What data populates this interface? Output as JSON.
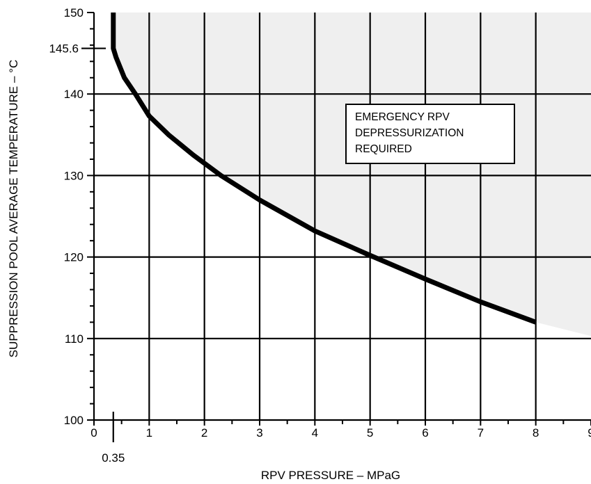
{
  "chart_data": {
    "type": "line",
    "xlabel": "RPV PRESSURE – MPaG",
    "ylabel": "SUPPRESSION POOL AVERAGE TEMPERATURE – °C",
    "xlim": [
      0,
      9
    ],
    "ylim": [
      100,
      150
    ],
    "x_ticks": [
      "0",
      "1",
      "2",
      "3",
      "4",
      "5",
      "6",
      "7",
      "8",
      "9"
    ],
    "y_ticks": [
      "100",
      "110",
      "120",
      "130",
      "140",
      "150"
    ],
    "grid": true,
    "series": [
      {
        "values": [
          {
            "x": 0.35,
            "y": 150
          },
          {
            "x": 0.35,
            "y": 145.6
          },
          {
            "x": 0.4,
            "y": 144.5
          },
          {
            "x": 0.55,
            "y": 142
          },
          {
            "x": 0.75,
            "y": 140
          },
          {
            "x": 1.0,
            "y": 137.3
          },
          {
            "x": 1.35,
            "y": 135
          },
          {
            "x": 1.8,
            "y": 132.5
          },
          {
            "x": 2.3,
            "y": 130
          },
          {
            "x": 3.0,
            "y": 127
          },
          {
            "x": 4.0,
            "y": 123.2
          },
          {
            "x": 5.0,
            "y": 120.2
          },
          {
            "x": 6.0,
            "y": 117.3
          },
          {
            "x": 7.0,
            "y": 114.5
          },
          {
            "x": 8.0,
            "y": 112
          }
        ]
      }
    ],
    "shaded_region": {
      "label_lines": [
        "EMERGENCY RPV",
        "DEPRESSURIZATION",
        "REQUIRED"
      ],
      "edge_end": {
        "x": 9.0,
        "y": 110.3
      },
      "color": "#efefef"
    },
    "annotations": [
      {
        "text": "145.6",
        "axis": "y",
        "value": 145.6
      },
      {
        "text": "0.35",
        "axis": "x",
        "value": 0.35
      }
    ]
  }
}
